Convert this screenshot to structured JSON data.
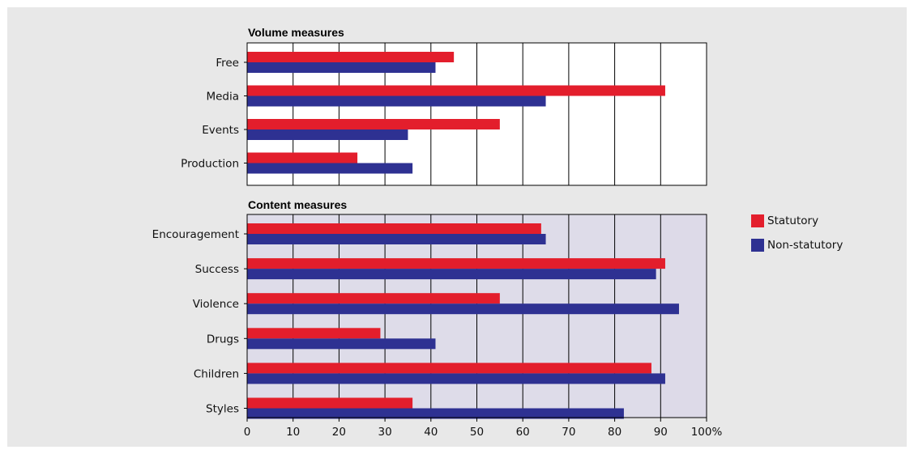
{
  "chart_data": [
    {
      "type": "bar",
      "orientation": "horizontal",
      "title": "Volume measures",
      "categories": [
        "Free",
        "Media",
        "Events",
        "Production"
      ],
      "series": [
        {
          "name": "Statutory",
          "values": [
            45,
            91,
            55,
            24
          ]
        },
        {
          "name": "Non-statutory",
          "values": [
            41,
            65,
            35,
            36
          ]
        }
      ],
      "xlim": [
        0,
        100
      ],
      "grid": true,
      "background": "#ffffff"
    },
    {
      "type": "bar",
      "orientation": "horizontal",
      "title": "Content measures",
      "categories": [
        "Encouragement",
        "Success",
        "Violence",
        "Drugs",
        "Children",
        "Styles"
      ],
      "series": [
        {
          "name": "Statutory",
          "values": [
            64,
            91,
            55,
            29,
            88,
            36
          ]
        },
        {
          "name": "Non-statutory",
          "values": [
            65,
            89,
            94,
            41,
            91,
            82
          ]
        }
      ],
      "xlim": [
        0,
        100
      ],
      "xticks": [
        "0",
        "10",
        "20",
        "30",
        "40",
        "50",
        "60",
        "70",
        "80",
        "90",
        "100%"
      ],
      "grid": true,
      "background": "#ffffff",
      "shaded_region": [
        90,
        100
      ],
      "shade_color": "#dcdae8"
    }
  ],
  "legend": {
    "placement": "right",
    "items": [
      {
        "label": "Statutory",
        "color": "#e31e2c"
      },
      {
        "label": "Non-statutory",
        "color": "#2e3192"
      }
    ]
  },
  "colors": {
    "panel_background": "#e8e8e8",
    "statutory": "#e31e2c",
    "non_statutory": "#2e3192",
    "grid": "#000000"
  }
}
